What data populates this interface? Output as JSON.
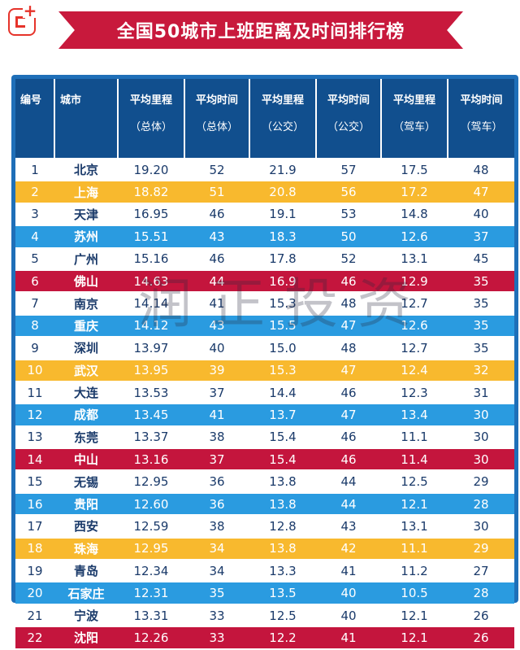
{
  "title": "全国50城市上班距离及时间排行榜",
  "watermark": "润正投资",
  "colors": {
    "banner": "#c8193c",
    "header": "#114f8e",
    "white": "#ffffff",
    "yellow": "#f8b92e",
    "blue": "#2a9be0",
    "red": "#c4153d"
  },
  "headers": [
    {
      "l1": "编号",
      "l2": ""
    },
    {
      "l1": "城市",
      "l2": ""
    },
    {
      "l1": "平均里程",
      "l2": "（总体）"
    },
    {
      "l1": "平均时间",
      "l2": "（总体）"
    },
    {
      "l1": "平均里程",
      "l2": "（公交）"
    },
    {
      "l1": "平均时间",
      "l2": "（公交）"
    },
    {
      "l1": "平均里程",
      "l2": "（驾车）"
    },
    {
      "l1": "平均时间",
      "l2": "（驾车）"
    }
  ],
  "rows": [
    {
      "style": "white",
      "cells": [
        "1",
        "北京",
        "19.20",
        "52",
        "21.9",
        "57",
        "17.5",
        "48"
      ]
    },
    {
      "style": "yellow",
      "cells": [
        "2",
        "上海",
        "18.82",
        "51",
        "20.8",
        "56",
        "17.2",
        "47"
      ]
    },
    {
      "style": "white",
      "cells": [
        "3",
        "天津",
        "16.95",
        "46",
        "19.1",
        "53",
        "14.8",
        "40"
      ]
    },
    {
      "style": "blue",
      "cells": [
        "4",
        "苏州",
        "15.51",
        "43",
        "18.3",
        "50",
        "12.6",
        "37"
      ]
    },
    {
      "style": "white",
      "cells": [
        "5",
        "广州",
        "15.16",
        "46",
        "17.8",
        "52",
        "13.1",
        "45"
      ]
    },
    {
      "style": "red",
      "cells": [
        "6",
        "佛山",
        "14.63",
        "44",
        "16.9",
        "46",
        "12.9",
        "35"
      ]
    },
    {
      "style": "white",
      "cells": [
        "7",
        "南京",
        "14.14",
        "41",
        "15.3",
        "48",
        "12.7",
        "35"
      ]
    },
    {
      "style": "blue",
      "cells": [
        "8",
        "重庆",
        "14.12",
        "43",
        "15.5",
        "47",
        "12.6",
        "35"
      ]
    },
    {
      "style": "white",
      "cells": [
        "9",
        "深圳",
        "13.97",
        "40",
        "15.0",
        "48",
        "12.7",
        "35"
      ]
    },
    {
      "style": "yellow",
      "cells": [
        "10",
        "武汉",
        "13.95",
        "39",
        "15.3",
        "47",
        "12.4",
        "32"
      ]
    },
    {
      "style": "white",
      "cells": [
        "11",
        "大连",
        "13.53",
        "37",
        "14.4",
        "46",
        "12.3",
        "31"
      ]
    },
    {
      "style": "blue",
      "cells": [
        "12",
        "成都",
        "13.45",
        "41",
        "13.7",
        "47",
        "13.4",
        "30"
      ]
    },
    {
      "style": "white",
      "cells": [
        "13",
        "东莞",
        "13.37",
        "38",
        "15.4",
        "46",
        "11.1",
        "30"
      ]
    },
    {
      "style": "red",
      "cells": [
        "14",
        "中山",
        "13.16",
        "37",
        "15.4",
        "46",
        "11.4",
        "30"
      ]
    },
    {
      "style": "white",
      "cells": [
        "15",
        "无锡",
        "12.95",
        "36",
        "13.8",
        "44",
        "12.5",
        "29"
      ]
    },
    {
      "style": "blue",
      "cells": [
        "16",
        "贵阳",
        "12.60",
        "36",
        "13.8",
        "44",
        "12.1",
        "28"
      ]
    },
    {
      "style": "white",
      "cells": [
        "17",
        "西安",
        "12.59",
        "38",
        "12.8",
        "43",
        "13.1",
        "30"
      ]
    },
    {
      "style": "yellow",
      "cells": [
        "18",
        "珠海",
        "12.95",
        "34",
        "13.8",
        "42",
        "11.1",
        "29"
      ]
    },
    {
      "style": "white",
      "cells": [
        "19",
        "青岛",
        "12.34",
        "34",
        "13.3",
        "41",
        "11.2",
        "27"
      ]
    },
    {
      "style": "blue",
      "cells": [
        "20",
        "石家庄",
        "12.31",
        "35",
        "13.5",
        "40",
        "10.5",
        "28"
      ]
    },
    {
      "style": "white",
      "cells": [
        "21",
        "宁波",
        "13.31",
        "33",
        "12.5",
        "40",
        "12.1",
        "26"
      ]
    },
    {
      "style": "red",
      "cells": [
        "22",
        "沈阳",
        "12.26",
        "33",
        "12.2",
        "41",
        "12.1",
        "26"
      ]
    }
  ]
}
